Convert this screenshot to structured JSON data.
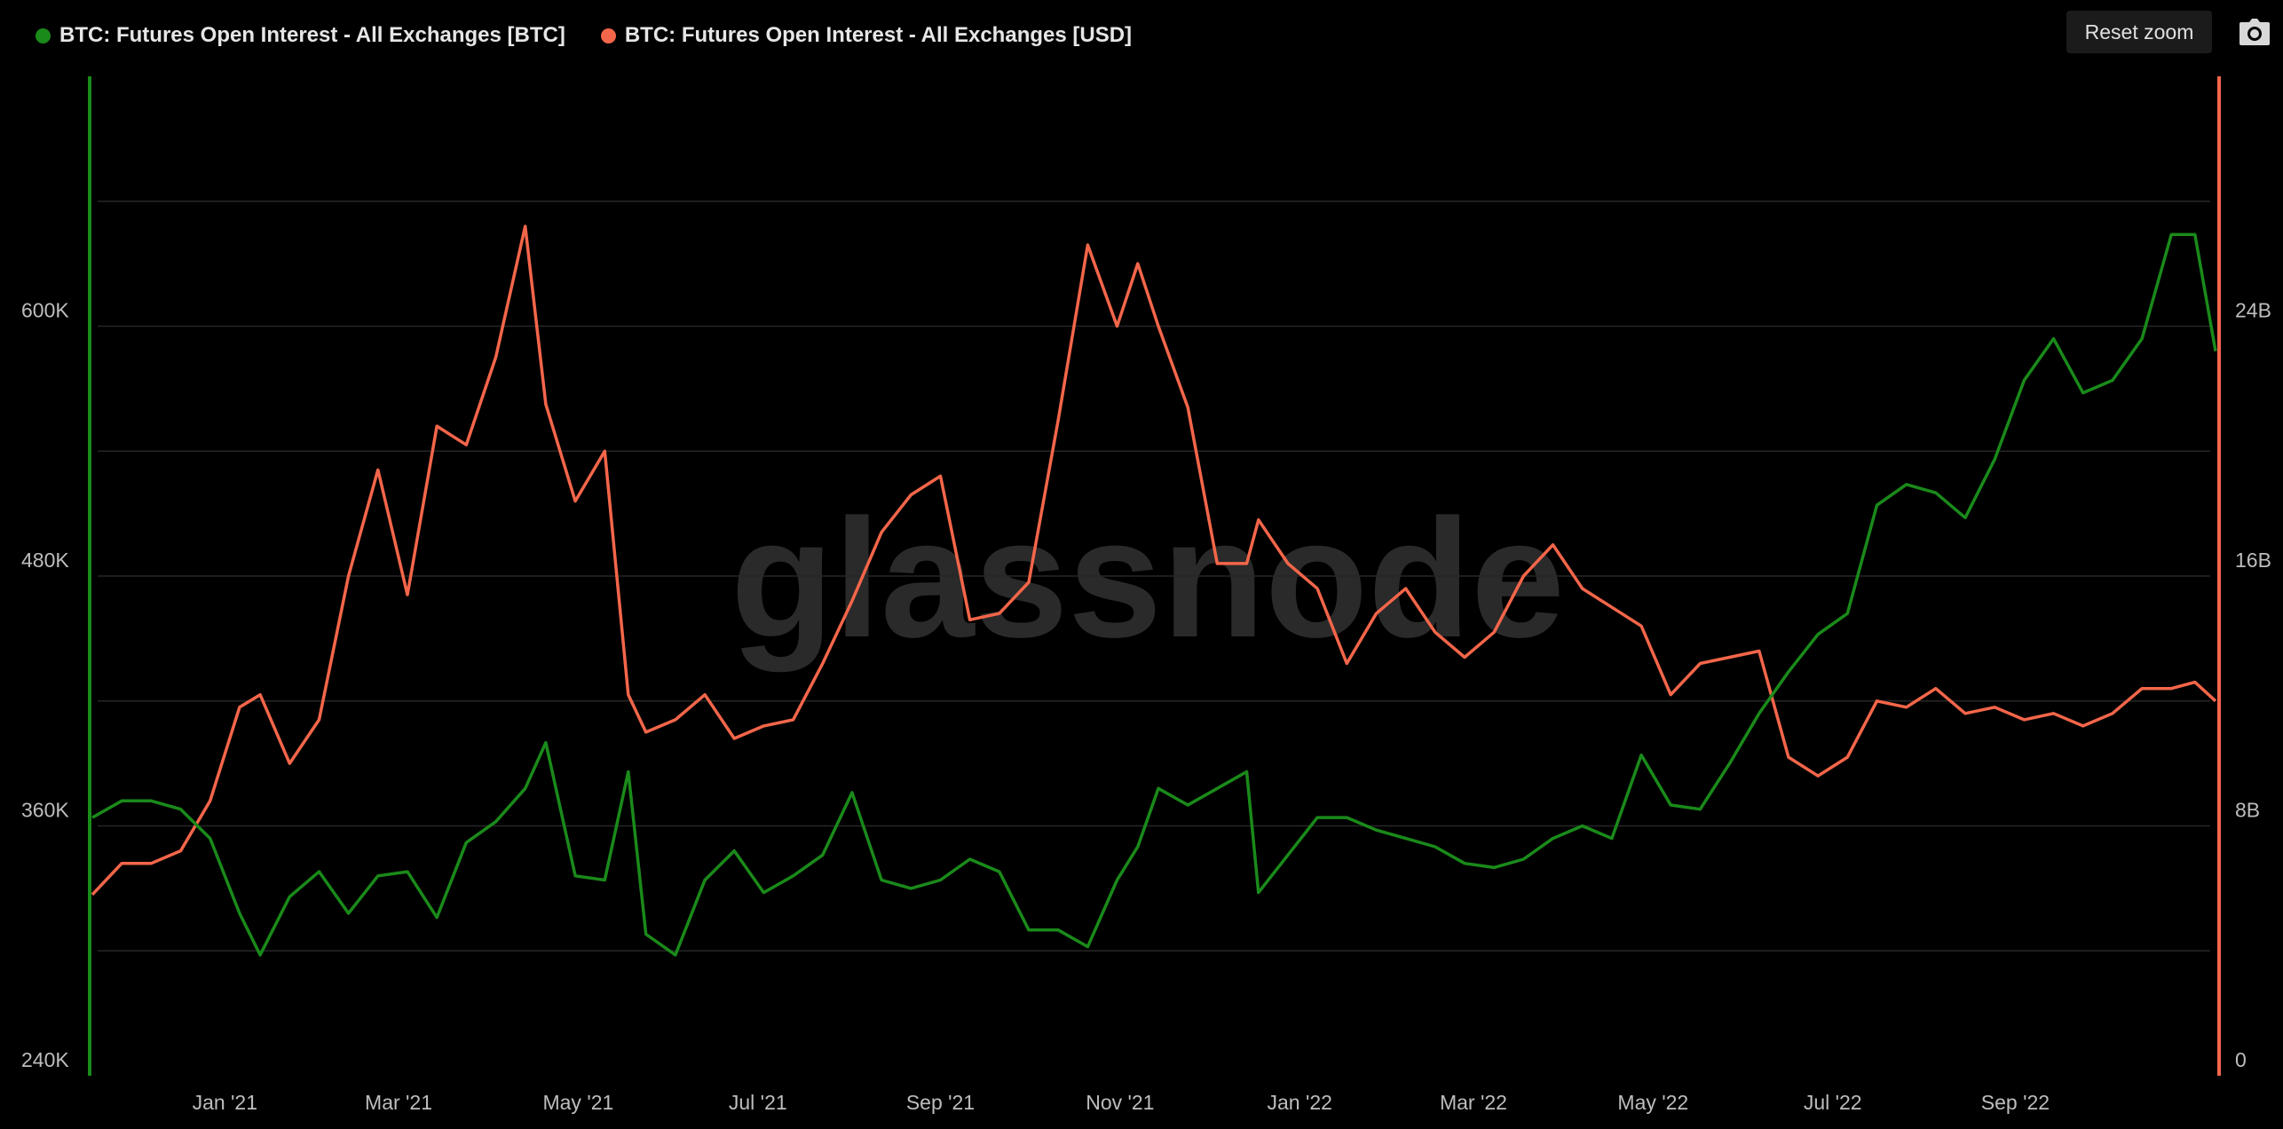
{
  "legend": {
    "btc_label": "BTC: Futures Open Interest - All Exchanges [BTC]",
    "usd_label": "BTC: Futures Open Interest - All Exchanges [USD]"
  },
  "toolbar": {
    "reset_zoom_label": "Reset zoom",
    "camera_icon": "camera-icon"
  },
  "watermark": "glassnode",
  "colors": {
    "btc": "#1a8a1a",
    "usd": "#f4664a",
    "grid": "#262626",
    "background": "#000000"
  },
  "chart_data": {
    "type": "line",
    "x_ticks": [
      "Jan '21",
      "Mar '21",
      "May '21",
      "Jul '21",
      "Sep '21",
      "Nov '21",
      "Jan '22",
      "Mar '22",
      "May '22",
      "Jul '22",
      "Sep '22"
    ],
    "x_tick_dates": [
      "2021-01-01",
      "2021-03-01",
      "2021-05-01",
      "2021-07-01",
      "2021-09-01",
      "2021-11-01",
      "2022-01-01",
      "2022-03-01",
      "2022-05-01",
      "2022-07-01",
      "2022-09-01"
    ],
    "x_range": [
      "2020-11-17",
      "2022-11-08"
    ],
    "y_left": {
      "unit": "BTC",
      "range": [
        240000,
        720000
      ],
      "tick_values": [
        240000,
        360000,
        480000,
        600000
      ],
      "tick_labels": [
        "240K",
        "360K",
        "480K",
        "600K"
      ]
    },
    "y_right": {
      "unit": "USD",
      "range": [
        0,
        32000000000
      ],
      "tick_values": [
        0,
        8000000000,
        16000000000,
        24000000000
      ],
      "tick_labels": [
        "0",
        "8B",
        "16B",
        "24B"
      ]
    },
    "grid": true,
    "legend_position": "top-left",
    "series": [
      {
        "name": "BTC: Futures Open Interest - All Exchanges [BTC]",
        "axis": "left",
        "points": [
          [
            "2020-11-17",
            364000
          ],
          [
            "2020-11-27",
            372000
          ],
          [
            "2020-12-07",
            372000
          ],
          [
            "2020-12-17",
            368000
          ],
          [
            "2020-12-27",
            354000
          ],
          [
            "2021-01-06",
            318000
          ],
          [
            "2021-01-13",
            298000
          ],
          [
            "2021-01-23",
            326000
          ],
          [
            "2021-02-02",
            338000
          ],
          [
            "2021-02-12",
            318000
          ],
          [
            "2021-02-22",
            336000
          ],
          [
            "2021-03-04",
            338000
          ],
          [
            "2021-03-14",
            316000
          ],
          [
            "2021-03-24",
            352000
          ],
          [
            "2021-04-03",
            362000
          ],
          [
            "2021-04-13",
            378000
          ],
          [
            "2021-04-20",
            400000
          ],
          [
            "2021-04-30",
            336000
          ],
          [
            "2021-05-10",
            334000
          ],
          [
            "2021-05-18",
            386000
          ],
          [
            "2021-05-24",
            308000
          ],
          [
            "2021-06-03",
            298000
          ],
          [
            "2021-06-13",
            334000
          ],
          [
            "2021-06-23",
            348000
          ],
          [
            "2021-07-03",
            328000
          ],
          [
            "2021-07-13",
            336000
          ],
          [
            "2021-07-23",
            346000
          ],
          [
            "2021-08-02",
            376000
          ],
          [
            "2021-08-12",
            334000
          ],
          [
            "2021-08-22",
            330000
          ],
          [
            "2021-09-01",
            334000
          ],
          [
            "2021-09-11",
            344000
          ],
          [
            "2021-09-21",
            338000
          ],
          [
            "2021-10-01",
            310000
          ],
          [
            "2021-10-11",
            310000
          ],
          [
            "2021-10-21",
            302000
          ],
          [
            "2021-10-31",
            334000
          ],
          [
            "2021-11-07",
            350000
          ],
          [
            "2021-11-14",
            378000
          ],
          [
            "2021-11-24",
            370000
          ],
          [
            "2021-12-04",
            378000
          ],
          [
            "2021-12-14",
            386000
          ],
          [
            "2021-12-18",
            328000
          ],
          [
            "2021-12-28",
            346000
          ],
          [
            "2022-01-07",
            364000
          ],
          [
            "2022-01-17",
            364000
          ],
          [
            "2022-01-27",
            358000
          ],
          [
            "2022-02-06",
            354000
          ],
          [
            "2022-02-16",
            350000
          ],
          [
            "2022-02-26",
            342000
          ],
          [
            "2022-03-08",
            340000
          ],
          [
            "2022-03-18",
            344000
          ],
          [
            "2022-03-28",
            354000
          ],
          [
            "2022-04-07",
            360000
          ],
          [
            "2022-04-17",
            354000
          ],
          [
            "2022-04-27",
            394000
          ],
          [
            "2022-05-07",
            370000
          ],
          [
            "2022-05-17",
            368000
          ],
          [
            "2022-05-27",
            390000
          ],
          [
            "2022-06-06",
            414000
          ],
          [
            "2022-06-16",
            434000
          ],
          [
            "2022-06-26",
            452000
          ],
          [
            "2022-07-06",
            462000
          ],
          [
            "2022-07-16",
            514000
          ],
          [
            "2022-07-26",
            524000
          ],
          [
            "2022-08-05",
            520000
          ],
          [
            "2022-08-15",
            508000
          ],
          [
            "2022-08-25",
            536000
          ],
          [
            "2022-09-04",
            574000
          ],
          [
            "2022-09-14",
            594000
          ],
          [
            "2022-09-24",
            568000
          ],
          [
            "2022-10-04",
            574000
          ],
          [
            "2022-10-14",
            594000
          ],
          [
            "2022-10-24",
            644000
          ],
          [
            "2022-11-01",
            644000
          ],
          [
            "2022-11-08",
            588000
          ]
        ]
      },
      {
        "name": "BTC: Futures Open Interest - All Exchanges [USD]",
        "axis": "right",
        "points": [
          [
            "2020-11-17",
            5800000000
          ],
          [
            "2020-11-27",
            6800000000
          ],
          [
            "2020-12-07",
            6800000000
          ],
          [
            "2020-12-17",
            7200000000
          ],
          [
            "2020-12-27",
            8800000000
          ],
          [
            "2021-01-06",
            11800000000
          ],
          [
            "2021-01-13",
            12200000000
          ],
          [
            "2021-01-23",
            10000000000
          ],
          [
            "2021-02-02",
            11400000000
          ],
          [
            "2021-02-12",
            16000000000
          ],
          [
            "2021-02-22",
            19400000000
          ],
          [
            "2021-03-04",
            15400000000
          ],
          [
            "2021-03-14",
            20800000000
          ],
          [
            "2021-03-24",
            20200000000
          ],
          [
            "2021-04-03",
            23000000000
          ],
          [
            "2021-04-13",
            27200000000
          ],
          [
            "2021-04-20",
            21500000000
          ],
          [
            "2021-04-30",
            18400000000
          ],
          [
            "2021-05-10",
            20000000000
          ],
          [
            "2021-05-18",
            12200000000
          ],
          [
            "2021-05-24",
            11000000000
          ],
          [
            "2021-06-03",
            11400000000
          ],
          [
            "2021-06-13",
            12200000000
          ],
          [
            "2021-06-23",
            10800000000
          ],
          [
            "2021-07-03",
            11200000000
          ],
          [
            "2021-07-13",
            11400000000
          ],
          [
            "2021-07-23",
            13200000000
          ],
          [
            "2021-08-02",
            15200000000
          ],
          [
            "2021-08-12",
            17400000000
          ],
          [
            "2021-08-22",
            18600000000
          ],
          [
            "2021-09-01",
            19200000000
          ],
          [
            "2021-09-11",
            14600000000
          ],
          [
            "2021-09-21",
            14800000000
          ],
          [
            "2021-10-01",
            15800000000
          ],
          [
            "2021-10-11",
            21000000000
          ],
          [
            "2021-10-21",
            26600000000
          ],
          [
            "2021-10-31",
            24000000000
          ],
          [
            "2021-11-07",
            26000000000
          ],
          [
            "2021-11-14",
            24000000000
          ],
          [
            "2021-11-24",
            21400000000
          ],
          [
            "2021-12-04",
            16400000000
          ],
          [
            "2021-12-14",
            16400000000
          ],
          [
            "2021-12-18",
            17800000000
          ],
          [
            "2021-12-28",
            16400000000
          ],
          [
            "2022-01-07",
            15600000000
          ],
          [
            "2022-01-17",
            13200000000
          ],
          [
            "2022-01-27",
            14800000000
          ],
          [
            "2022-02-06",
            15600000000
          ],
          [
            "2022-02-16",
            14200000000
          ],
          [
            "2022-02-26",
            13400000000
          ],
          [
            "2022-03-08",
            14200000000
          ],
          [
            "2022-03-18",
            16000000000
          ],
          [
            "2022-03-28",
            17000000000
          ],
          [
            "2022-04-07",
            15600000000
          ],
          [
            "2022-04-17",
            15000000000
          ],
          [
            "2022-04-27",
            14400000000
          ],
          [
            "2022-05-07",
            12200000000
          ],
          [
            "2022-05-17",
            13200000000
          ],
          [
            "2022-05-27",
            13400000000
          ],
          [
            "2022-06-06",
            13600000000
          ],
          [
            "2022-06-16",
            10200000000
          ],
          [
            "2022-06-26",
            9600000000
          ],
          [
            "2022-07-06",
            10200000000
          ],
          [
            "2022-07-16",
            12000000000
          ],
          [
            "2022-07-26",
            11800000000
          ],
          [
            "2022-08-05",
            12400000000
          ],
          [
            "2022-08-15",
            11600000000
          ],
          [
            "2022-08-25",
            11800000000
          ],
          [
            "2022-09-04",
            11400000000
          ],
          [
            "2022-09-14",
            11600000000
          ],
          [
            "2022-09-24",
            11200000000
          ],
          [
            "2022-10-04",
            11600000000
          ],
          [
            "2022-10-14",
            12400000000
          ],
          [
            "2022-10-24",
            12400000000
          ],
          [
            "2022-11-01",
            12600000000
          ],
          [
            "2022-11-08",
            12000000000
          ]
        ]
      }
    ]
  }
}
